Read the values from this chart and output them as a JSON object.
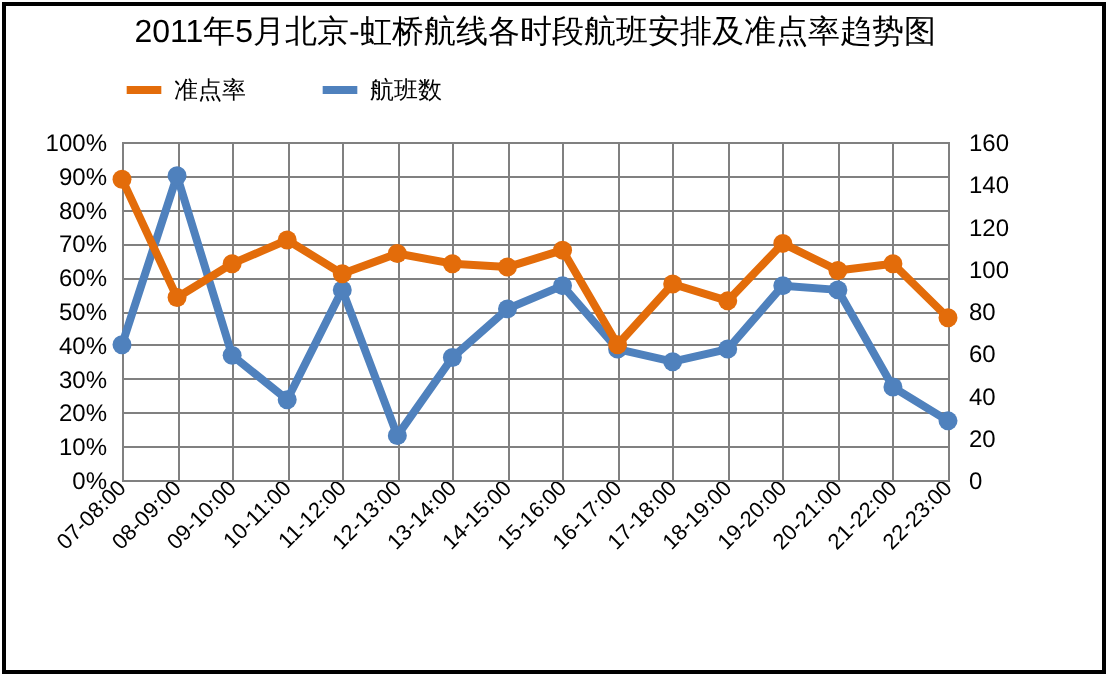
{
  "chart_data": {
    "type": "line",
    "title": "2011年5月北京-虹桥航线各时段航班安排及准点率趋势图",
    "categories": [
      "07-08:00",
      "08-09:00",
      "09-10:00",
      "10-11:00",
      "11-12:00",
      "12-13:00",
      "13-14:00",
      "14-15:00",
      "15-16:00",
      "16-17:00",
      "17-18:00",
      "18-19:00",
      "19-20:00",
      "20-21:00",
      "21-22:00",
      "22-23:00"
    ],
    "series": [
      {
        "name": "准点率",
        "color": "#e36c0a",
        "values": [
          89,
          54,
          64,
          71,
          61,
          67,
          64,
          63,
          68,
          40,
          58,
          53,
          70,
          62,
          64,
          48
        ]
      },
      {
        "name": "航班数",
        "color": "#4f81bd",
        "axis": "y2",
        "values": [
          64,
          144,
          59,
          38,
          90,
          21,
          58,
          81,
          92,
          62,
          56,
          62,
          92,
          90,
          44,
          28
        ]
      }
    ],
    "ylim": [
      0,
      100
    ],
    "yticks": [
      {
        "value": 0,
        "label": "0%"
      },
      {
        "value": 10,
        "label": "10%"
      },
      {
        "value": 20,
        "label": "20%"
      },
      {
        "value": 30,
        "label": "30%"
      },
      {
        "value": 40,
        "label": "40%"
      },
      {
        "value": 50,
        "label": "50%"
      },
      {
        "value": 60,
        "label": "60%"
      },
      {
        "value": 70,
        "label": "70%"
      },
      {
        "value": 80,
        "label": "80%"
      },
      {
        "value": 90,
        "label": "90%"
      },
      {
        "value": 100,
        "label": "100%"
      }
    ],
    "y2lim": [
      0,
      160
    ],
    "y2ticks": [
      0,
      20,
      40,
      60,
      80,
      100,
      120,
      140,
      160
    ],
    "grid": true,
    "legend": "top",
    "marker": "circle",
    "line_style": "solid"
  }
}
